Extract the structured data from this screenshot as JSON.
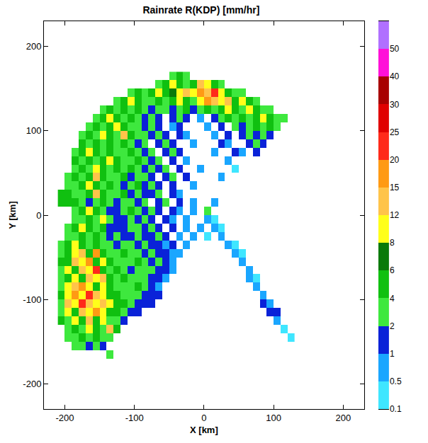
{
  "chart_data": {
    "type": "heatmap",
    "title": "Rainrate R(KDP) [mm/hr]",
    "xlabel": "X [km]",
    "ylabel": "Y [km]",
    "xlim": [
      -230,
      230
    ],
    "ylim": [
      -230,
      230
    ],
    "xticks": [
      -200,
      -100,
      0,
      100,
      200
    ],
    "yticks": [
      -200,
      -100,
      0,
      100,
      200
    ],
    "grid": false,
    "colorbar": {
      "range": [
        0.1,
        50
      ],
      "ticks": [
        0.1,
        0.5,
        1,
        2,
        4,
        6,
        8,
        12,
        15,
        20,
        25,
        30,
        40,
        50
      ],
      "colors": [
        "#3fe6ff",
        "#1aa6ff",
        "#0a22d8",
        "#3ee83e",
        "#10c010",
        "#0a7a0a",
        "#ffff1a",
        "#ffc44a",
        "#ff9a14",
        "#ff2a1a",
        "#e00000",
        "#a80000",
        "#ff10d8",
        "#b070ff"
      ]
    },
    "x": [
      -205,
      -195,
      -185,
      -175,
      -165,
      -155,
      -145,
      -135,
      -125,
      -115,
      -105,
      -95,
      -85,
      -75,
      -65,
      -55,
      -45,
      -35,
      -25,
      -15,
      -5,
      5,
      15,
      25,
      35,
      45,
      55,
      65,
      75,
      85,
      95,
      105,
      115,
      125
    ],
    "y": [
      165,
      155,
      145,
      135,
      125,
      115,
      105,
      95,
      85,
      75,
      65,
      55,
      45,
      35,
      25,
      15,
      5,
      -5,
      -15,
      -25,
      -35,
      -45,
      -55,
      -65,
      -75,
      -85,
      -95,
      -105,
      -115,
      -125,
      -135,
      -145,
      -155,
      -165,
      -175
    ],
    "z": [
      [
        null,
        null,
        null,
        null,
        null,
        null,
        null,
        null,
        null,
        null,
        null,
        null,
        null,
        null,
        null,
        null,
        3,
        5,
        3,
        null,
        null,
        null,
        null,
        null,
        null,
        null,
        null,
        null,
        null,
        null,
        null,
        null,
        null,
        null
      ],
      [
        null,
        null,
        null,
        null,
        null,
        null,
        null,
        null,
        null,
        null,
        null,
        null,
        null,
        null,
        3,
        5,
        10,
        5,
        3,
        5,
        13,
        10,
        5,
        3,
        null,
        null,
        null,
        null,
        null,
        null,
        null,
        null,
        null,
        null
      ],
      [
        null,
        null,
        null,
        null,
        null,
        null,
        null,
        null,
        null,
        null,
        3,
        5,
        3,
        5,
        10,
        5,
        7,
        10,
        13,
        10,
        17,
        13,
        22,
        10,
        5,
        3,
        3,
        null,
        null,
        null,
        null,
        null,
        null,
        null
      ],
      [
        null,
        null,
        null,
        null,
        null,
        null,
        null,
        null,
        3,
        5,
        10,
        5,
        3,
        3,
        5,
        3,
        5,
        10,
        5,
        3,
        10,
        17,
        13,
        10,
        13,
        5,
        10,
        5,
        3,
        null,
        null,
        null,
        null,
        null
      ],
      [
        null,
        null,
        null,
        null,
        null,
        null,
        3,
        5,
        3,
        5,
        3,
        5,
        3,
        1.5,
        3,
        3,
        1.5,
        3,
        5,
        1.5,
        3,
        5,
        3,
        5,
        10,
        5,
        3,
        10,
        5,
        3,
        3,
        null,
        null,
        null
      ],
      [
        null,
        null,
        null,
        null,
        null,
        3,
        5,
        10,
        5,
        3,
        5,
        3,
        1.5,
        3,
        1.5,
        null,
        1.5,
        3,
        1.5,
        null,
        0.7,
        null,
        1.5,
        3,
        5,
        3,
        5,
        3,
        5,
        10,
        5,
        3,
        3,
        null
      ],
      [
        null,
        null,
        null,
        null,
        3,
        5,
        3,
        5,
        10,
        5,
        3,
        3,
        1.5,
        3,
        1.5,
        null,
        0.7,
        1.5,
        null,
        null,
        null,
        0.7,
        null,
        1.5,
        null,
        3,
        1.5,
        3,
        5,
        3,
        5,
        3,
        null,
        null
      ],
      [
        null,
        null,
        null,
        3,
        5,
        3,
        10,
        5,
        3,
        13,
        5,
        3,
        3,
        1.5,
        3,
        1.5,
        null,
        1.5,
        0.7,
        null,
        null,
        null,
        0.7,
        null,
        1.5,
        null,
        1.5,
        3,
        1.5,
        3,
        1.5,
        null,
        null,
        null
      ],
      [
        null,
        null,
        null,
        5,
        3,
        5,
        3,
        5,
        3,
        5,
        3,
        1.5,
        3,
        null,
        1.5,
        3,
        1.5,
        null,
        null,
        0.7,
        null,
        null,
        null,
        1.5,
        0.7,
        null,
        null,
        1.5,
        3,
        1.5,
        null,
        null,
        null,
        null
      ],
      [
        null,
        null,
        3,
        5,
        10,
        5,
        3,
        5,
        3,
        3,
        5,
        3,
        1.5,
        3,
        null,
        1.5,
        3,
        1.5,
        null,
        null,
        null,
        null,
        0.7,
        null,
        null,
        1.5,
        0.7,
        null,
        1.5,
        null,
        null,
        null,
        null,
        null
      ],
      [
        null,
        null,
        5,
        3,
        5,
        3,
        5,
        10,
        5,
        3,
        3,
        5,
        3,
        1.5,
        3,
        null,
        1.5,
        null,
        0.7,
        null,
        null,
        null,
        null,
        null,
        0.7,
        null,
        null,
        null,
        null,
        null,
        null,
        null,
        null,
        null
      ],
      [
        null,
        null,
        3,
        5,
        3,
        10,
        5,
        3,
        5,
        3,
        5,
        3,
        1.5,
        3,
        1.5,
        3,
        null,
        1.5,
        null,
        null,
        0.7,
        null,
        null,
        null,
        null,
        0.3,
        null,
        null,
        null,
        null,
        null,
        null,
        null,
        null
      ],
      [
        null,
        3,
        5,
        3,
        5,
        13,
        5,
        3,
        3,
        5,
        1.5,
        3,
        3,
        1.5,
        null,
        1.5,
        3,
        null,
        1.5,
        null,
        null,
        null,
        null,
        0.7,
        null,
        null,
        null,
        null,
        null,
        null,
        null,
        null,
        null,
        null
      ],
      [
        null,
        3,
        3,
        5,
        10,
        5,
        3,
        5,
        3,
        1.5,
        3,
        5,
        1.5,
        3,
        1.5,
        null,
        1.5,
        null,
        null,
        0.7,
        null,
        null,
        null,
        null,
        null,
        null,
        null,
        null,
        null,
        null,
        null,
        null,
        null,
        null
      ],
      [
        5,
        5,
        3,
        3,
        5,
        13,
        5,
        3,
        3,
        5,
        1.5,
        3,
        1.5,
        1.5,
        3,
        null,
        1.5,
        0.7,
        null,
        null,
        null,
        null,
        null,
        null,
        null,
        null,
        null,
        null,
        null,
        null,
        null,
        null,
        null,
        null
      ],
      [
        5,
        5,
        5,
        3,
        1.5,
        3,
        5,
        3,
        1.5,
        3,
        3,
        1.5,
        3,
        null,
        1.5,
        3,
        null,
        1.5,
        null,
        0.7,
        null,
        null,
        0.7,
        null,
        null,
        null,
        null,
        null,
        null,
        null,
        null,
        null,
        null,
        null
      ],
      [
        null,
        null,
        3,
        5,
        10,
        5,
        3,
        1.5,
        1.5,
        3,
        5,
        3,
        1.5,
        3,
        1.5,
        null,
        1.5,
        0.7,
        null,
        0.7,
        null,
        3,
        null,
        null,
        null,
        null,
        null,
        null,
        null,
        null,
        null,
        null,
        null,
        null
      ],
      [
        null,
        null,
        3,
        3,
        5,
        3,
        10,
        3,
        1.5,
        1.5,
        3,
        1.5,
        3,
        1.5,
        null,
        1.5,
        0.7,
        null,
        0.7,
        null,
        null,
        0.7,
        0.3,
        null,
        null,
        null,
        null,
        null,
        null,
        null,
        null,
        null,
        null,
        null
      ],
      [
        null,
        3,
        5,
        10,
        5,
        3,
        5,
        1.5,
        1.5,
        1.5,
        3,
        3,
        1.5,
        3,
        1.5,
        null,
        1.5,
        null,
        0.7,
        null,
        0.7,
        null,
        0.7,
        0.3,
        null,
        null,
        null,
        null,
        null,
        null,
        null,
        null,
        null,
        null
      ],
      [
        null,
        3,
        3,
        5,
        3,
        5,
        3,
        1.5,
        3,
        1.5,
        1.5,
        3,
        1.5,
        1.5,
        3,
        1.5,
        null,
        0.7,
        null,
        0.7,
        null,
        0.3,
        null,
        0.7,
        null,
        null,
        null,
        null,
        null,
        null,
        null,
        null,
        null,
        null
      ],
      [
        3,
        5,
        10,
        5,
        3,
        5,
        3,
        3,
        1.5,
        3,
        3,
        1.5,
        3,
        1.5,
        1.5,
        0.7,
        1.5,
        null,
        0.7,
        null,
        null,
        null,
        null,
        null,
        0.7,
        0.3,
        null,
        null,
        null,
        null,
        null,
        null,
        null,
        null
      ],
      [
        3,
        5,
        10,
        13,
        5,
        17,
        5,
        3,
        3,
        5,
        3,
        3,
        1.5,
        3,
        1.5,
        1.5,
        0.7,
        0.7,
        null,
        null,
        null,
        null,
        null,
        null,
        null,
        0.7,
        0.3,
        null,
        null,
        null,
        null,
        null,
        null,
        null
      ],
      [
        5,
        5,
        13,
        10,
        17,
        5,
        10,
        5,
        3,
        3,
        3,
        5,
        3,
        1.5,
        3,
        1.5,
        0.7,
        null,
        null,
        null,
        null,
        null,
        null,
        null,
        null,
        null,
        0.7,
        null,
        null,
        null,
        null,
        null,
        null,
        null
      ],
      [
        3,
        10,
        5,
        13,
        10,
        22,
        5,
        3,
        5,
        3,
        1.5,
        3,
        3,
        3,
        1.5,
        1.5,
        0.7,
        null,
        null,
        null,
        null,
        null,
        null,
        null,
        null,
        null,
        null,
        0.7,
        null,
        null,
        null,
        null,
        null,
        null
      ],
      [
        3,
        5,
        10,
        5,
        13,
        10,
        13,
        5,
        3,
        5,
        3,
        3,
        3,
        1.5,
        1.5,
        0.7,
        null,
        null,
        null,
        null,
        null,
        null,
        null,
        null,
        null,
        null,
        null,
        0.7,
        0.3,
        null,
        null,
        null,
        null,
        null
      ],
      [
        3,
        10,
        13,
        17,
        10,
        5,
        10,
        5,
        3,
        3,
        3,
        5,
        3,
        1.5,
        0.7,
        null,
        null,
        null,
        null,
        null,
        null,
        null,
        null,
        null,
        null,
        null,
        null,
        null,
        0.7,
        null,
        null,
        null,
        null,
        null
      ],
      [
        5,
        10,
        17,
        10,
        22,
        13,
        10,
        5,
        5,
        3,
        3,
        3,
        1.5,
        1.5,
        1.5,
        null,
        null,
        null,
        null,
        null,
        null,
        null,
        null,
        null,
        null,
        null,
        null,
        null,
        null,
        0.7,
        null,
        null,
        null,
        null
      ],
      [
        3,
        13,
        10,
        22,
        13,
        10,
        13,
        10,
        5,
        5,
        3,
        1.5,
        1.5,
        1.5,
        null,
        null,
        null,
        null,
        null,
        null,
        null,
        null,
        null,
        null,
        null,
        null,
        null,
        null,
        null,
        1.5,
        0.7,
        null,
        null,
        null
      ],
      [
        3,
        10,
        5,
        13,
        10,
        17,
        10,
        5,
        5,
        3,
        1.5,
        1.5,
        null,
        null,
        null,
        null,
        null,
        null,
        null,
        null,
        null,
        null,
        null,
        null,
        null,
        null,
        null,
        null,
        null,
        null,
        1.5,
        1.5,
        null,
        null
      ],
      [
        5,
        3,
        10,
        5,
        13,
        5,
        10,
        3,
        3,
        1.5,
        null,
        null,
        null,
        null,
        null,
        null,
        null,
        null,
        null,
        null,
        null,
        null,
        null,
        null,
        null,
        null,
        null,
        null,
        null,
        null,
        null,
        0.7,
        null,
        null
      ],
      [
        null,
        3,
        5,
        3,
        10,
        5,
        3,
        13,
        5,
        null,
        null,
        null,
        null,
        null,
        null,
        null,
        null,
        null,
        null,
        null,
        null,
        null,
        null,
        null,
        null,
        null,
        null,
        null,
        null,
        null,
        null,
        null,
        0.3,
        null
      ],
      [
        null,
        3,
        3,
        5,
        3,
        5,
        3,
        3,
        null,
        null,
        null,
        null,
        null,
        null,
        null,
        null,
        null,
        null,
        null,
        null,
        null,
        null,
        null,
        null,
        null,
        null,
        null,
        null,
        null,
        null,
        null,
        null,
        null,
        0.3
      ],
      [
        null,
        null,
        3,
        3,
        1.5,
        3,
        1.5,
        null,
        null,
        null,
        null,
        null,
        null,
        null,
        null,
        null,
        null,
        null,
        null,
        null,
        null,
        null,
        null,
        null,
        null,
        null,
        null,
        null,
        null,
        null,
        null,
        null,
        null,
        null
      ],
      [
        null,
        null,
        null,
        null,
        null,
        null,
        null,
        3,
        null,
        null,
        null,
        null,
        null,
        null,
        null,
        null,
        null,
        null,
        null,
        null,
        null,
        null,
        null,
        null,
        null,
        null,
        null,
        null,
        null,
        null,
        null,
        null,
        null,
        null
      ],
      [
        null,
        null,
        null,
        null,
        null,
        null,
        null,
        null,
        null,
        null,
        null,
        null,
        null,
        null,
        null,
        null,
        null,
        null,
        null,
        null,
        null,
        null,
        null,
        null,
        null,
        null,
        null,
        null,
        null,
        null,
        null,
        null,
        null,
        null
      ]
    ]
  }
}
